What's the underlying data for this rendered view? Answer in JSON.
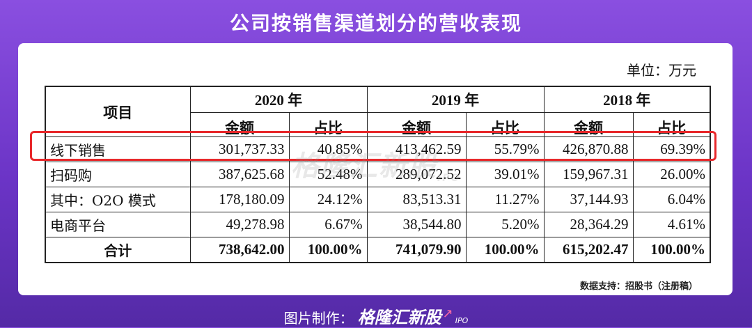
{
  "title": "公司按销售渠道划分的营收表现",
  "unit_label": "单位：万元",
  "table": {
    "item_header": "项目",
    "years": [
      "2020 年",
      "2019 年",
      "2018 年"
    ],
    "sub_headers": [
      "金额",
      "占比"
    ],
    "rows": [
      {
        "name": "线下销售",
        "cells": [
          "301,737.33",
          "40.85%",
          "413,462.59",
          "55.79%",
          "426,870.88",
          "69.39%"
        ]
      },
      {
        "name": "扫码购",
        "cells": [
          "387,625.68",
          "52.48%",
          "289,072.52",
          "39.01%",
          "159,967.31",
          "26.00%"
        ]
      },
      {
        "name": "其中：O2O 模式",
        "cells": [
          "178,180.09",
          "24.12%",
          "83,513.31",
          "11.27%",
          "37,144.93",
          "6.04%"
        ]
      },
      {
        "name": "电商平台",
        "cells": [
          "49,278.98",
          "6.67%",
          "38,544.80",
          "5.20%",
          "28,364.29",
          "4.61%"
        ]
      }
    ],
    "total": {
      "name": "合计",
      "cells": [
        "738,642.00",
        "100.00%",
        "741,079.90",
        "100.00%",
        "615,202.47",
        "100.00%"
      ]
    }
  },
  "watermark": {
    "text": "格隆汇新股",
    "suffix": "IPO"
  },
  "source": "数据支持：招股书（注册稿）",
  "footer": {
    "prefix": "图片制作：",
    "brand": "格隆汇新股",
    "suffix": "IPO"
  },
  "colors": {
    "highlight_box": "#e8282b",
    "background": "#6b34c6"
  }
}
